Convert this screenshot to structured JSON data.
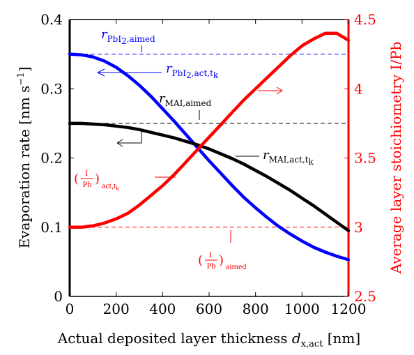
{
  "chart_data": {
    "type": "line",
    "xlabel": "Actual deposited layer thickness",
    "xlabel_var": "d",
    "xlabel_sub": "x,act",
    "xlabel_unit": "[nm]",
    "ylabel_left": "Evaporation rate [nm s",
    "ylabel_left_sup": "−1",
    "ylabel_left_end": "]",
    "ylabel_right": "Average layer stoichiometry I/Pb",
    "xlim": [
      0,
      1200
    ],
    "ylim_left": [
      0,
      0.4
    ],
    "ylim_right": [
      2.5,
      4.5
    ],
    "x_ticks": [
      "0",
      "200",
      "400",
      "600",
      "800",
      "1000",
      "1200"
    ],
    "y_left_ticks": [
      "0",
      "0.1",
      "0.2",
      "0.3",
      "0.4"
    ],
    "y_right_ticks": [
      "2.5",
      "3",
      "3.5",
      "4",
      "4.5"
    ],
    "x": [
      0,
      50,
      100,
      150,
      200,
      250,
      300,
      350,
      400,
      450,
      500,
      550,
      600,
      650,
      700,
      750,
      800,
      850,
      900,
      950,
      1000,
      1050,
      1100,
      1150,
      1200
    ],
    "series": [
      {
        "key": "pbi2_act",
        "axis": "left",
        "color": "#0000ff",
        "values": [
          0.35,
          0.349,
          0.346,
          0.34,
          0.331,
          0.319,
          0.305,
          0.289,
          0.271,
          0.253,
          0.234,
          0.215,
          0.196,
          0.178,
          0.16,
          0.143,
          0.128,
          0.114,
          0.101,
          0.09,
          0.08,
          0.071,
          0.064,
          0.058,
          0.053
        ]
      },
      {
        "key": "mai_act",
        "axis": "left",
        "color": "#000000",
        "values": [
          0.25,
          0.25,
          0.249,
          0.248,
          0.246,
          0.244,
          0.241,
          0.237,
          0.233,
          0.229,
          0.224,
          0.219,
          0.213,
          0.206,
          0.199,
          0.191,
          0.182,
          0.173,
          0.163,
          0.153,
          0.142,
          0.131,
          0.119,
          0.107,
          0.095
        ]
      },
      {
        "key": "ratio_act",
        "axis": "right",
        "color": "#ff0000",
        "values": [
          3.0,
          3.0,
          3.01,
          3.03,
          3.06,
          3.1,
          3.16,
          3.23,
          3.3,
          3.38,
          3.47,
          3.56,
          3.65,
          3.74,
          3.83,
          3.92,
          4.0,
          4.08,
          4.16,
          4.24,
          4.31,
          4.36,
          4.4,
          4.4,
          4.35
        ]
      }
    ],
    "reference_lines": [
      {
        "key": "pbi2_aimed",
        "axis": "left",
        "y": 0.35,
        "color": "#0000ff",
        "style": "dashed"
      },
      {
        "key": "mai_aimed",
        "axis": "left",
        "y": 0.25,
        "color": "#000000",
        "style": "dashed"
      },
      {
        "key": "ratio_aimed",
        "axis": "right",
        "y": 3.0,
        "color": "#ff0000",
        "style": "dashed"
      }
    ],
    "annotations": {
      "pbi2_aimed": {
        "main": "r",
        "sub": "PbI",
        "sub2": "2",
        "sub_end": ",aimed"
      },
      "pbi2_act": {
        "main": "r",
        "sub": "PbI",
        "sub2": "2",
        "sub_end": ",act,t",
        "sub3": "k"
      },
      "mai_aimed": {
        "main": "r",
        "sub": "MAI,aimed"
      },
      "mai_act": {
        "main": "r",
        "sub": "MAI,act,t",
        "sub2": "k"
      },
      "ratio_act": {
        "num": "I",
        "den": "Pb",
        "sub": "act,t",
        "sub2": "k"
      },
      "ratio_aimed": {
        "num": "I",
        "den": "Pb",
        "sub": "aimed"
      }
    },
    "grid": false
  }
}
